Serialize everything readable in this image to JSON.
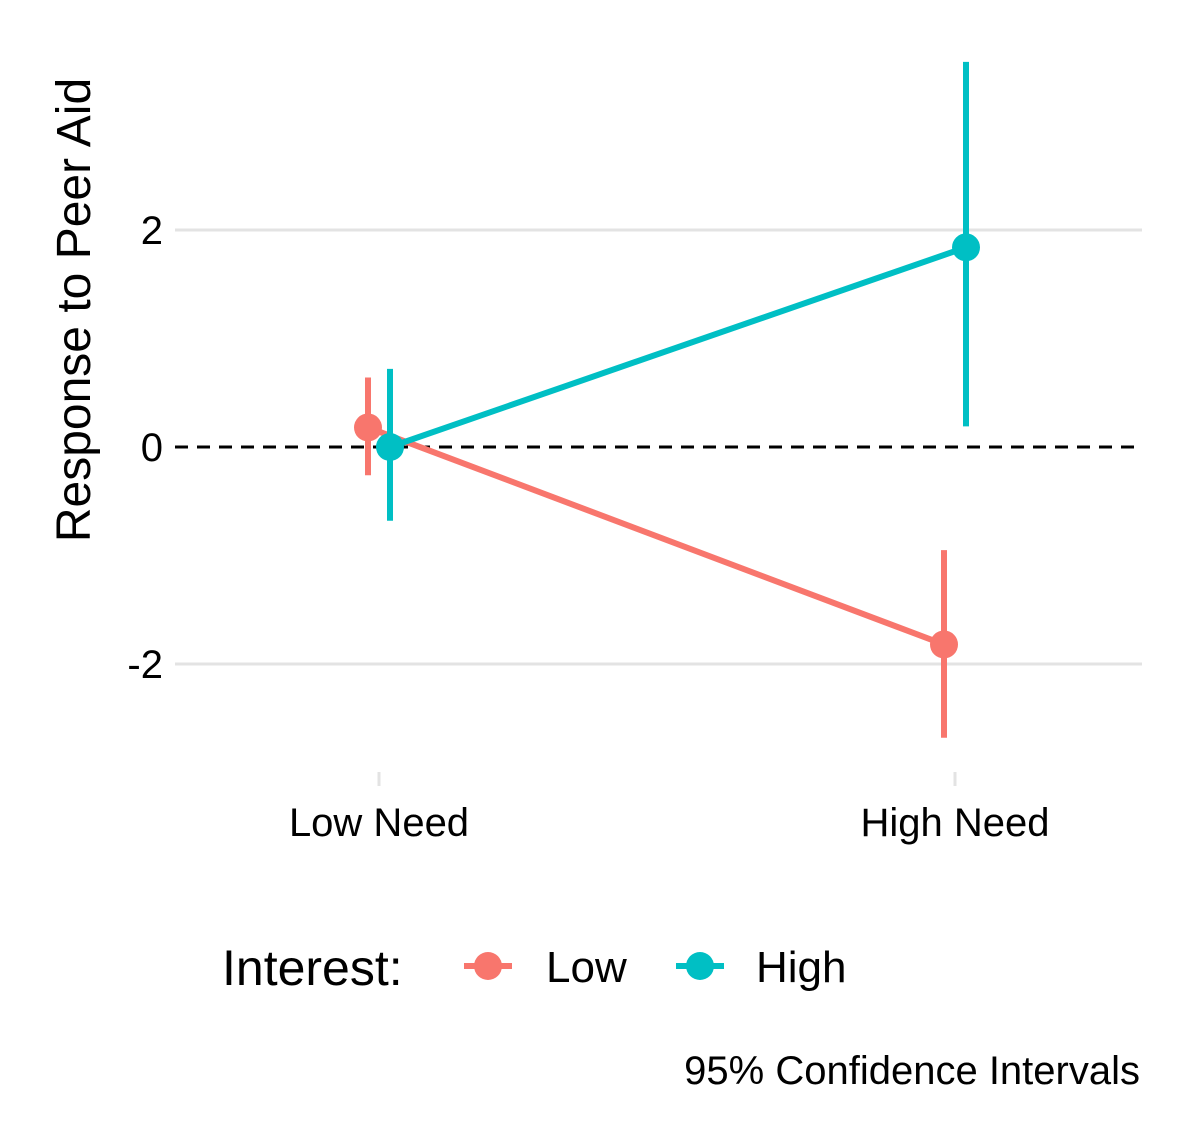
{
  "chart_data": {
    "type": "line",
    "title": "",
    "xlabel": "",
    "ylabel": "Response to Peer Aid",
    "categories": [
      "Low Need",
      "High Need"
    ],
    "yticks": [
      -2,
      0,
      2
    ],
    "ylim": [
      -2.9,
      3.9
    ],
    "grid": "horizontal",
    "reference_line": {
      "y": 0,
      "style": "dashed"
    },
    "legend": {
      "title": "Interest:",
      "placement": "bottom"
    },
    "caption": "95% Confidence Intervals",
    "series": [
      {
        "name": "Low",
        "color": "#F8766D",
        "values": [
          0.18,
          -1.82
        ],
        "ci_lower": [
          -0.26,
          -2.68
        ],
        "ci_upper": [
          0.64,
          -0.95
        ]
      },
      {
        "name": "High",
        "color": "#00BFC4",
        "values": [
          0.0,
          1.84
        ],
        "ci_lower": [
          -0.68,
          0.19
        ],
        "ci_upper": [
          0.72,
          3.55
        ]
      }
    ]
  }
}
